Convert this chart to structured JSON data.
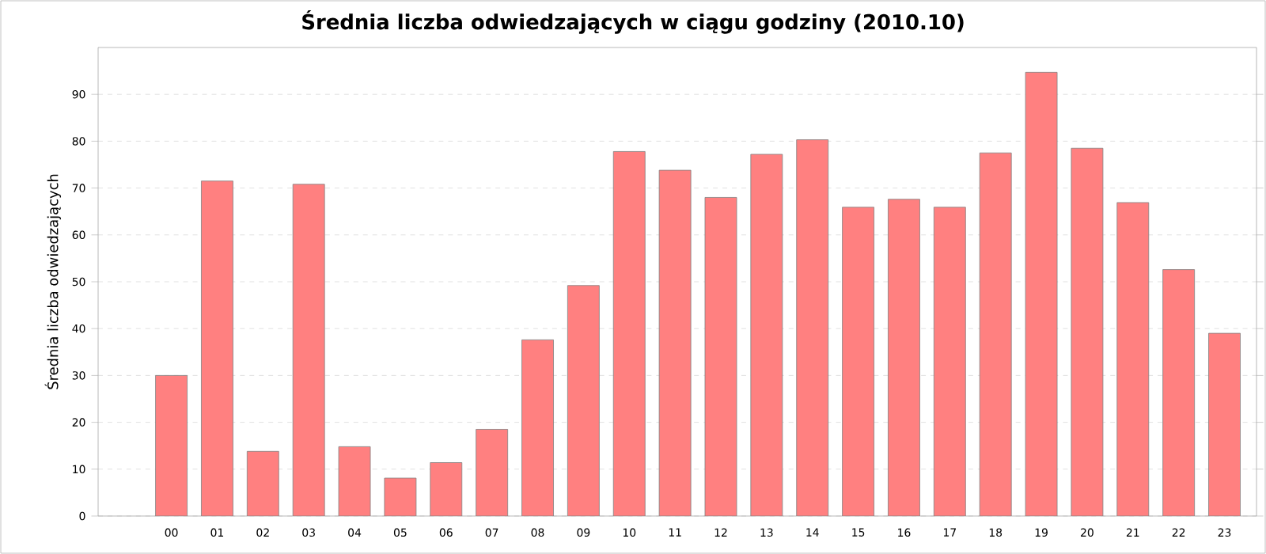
{
  "chart_data": {
    "type": "bar",
    "title": "Średnia liczba odwiedzających w ciągu godziny (2010.10)",
    "ylabel": "Średnia liczba odwiedzających",
    "categories": [
      "00",
      "01",
      "02",
      "03",
      "04",
      "05",
      "06",
      "07",
      "08",
      "09",
      "10",
      "11",
      "12",
      "13",
      "14",
      "15",
      "16",
      "17",
      "18",
      "19",
      "20",
      "21",
      "22",
      "23"
    ],
    "values": [
      30,
      71.5,
      13.8,
      70.8,
      14.8,
      8.1,
      11.4,
      18.5,
      37.6,
      49.2,
      77.8,
      73.8,
      68,
      77.2,
      80.3,
      65.9,
      67.6,
      65.9,
      77.5,
      94.7,
      78.5,
      66.9,
      52.6,
      39
    ],
    "color": "#ff8080",
    "ylim": [
      0,
      100
    ],
    "yticks": [
      0,
      10,
      20,
      30,
      40,
      50,
      60,
      70,
      80,
      90
    ],
    "grid": "y"
  }
}
